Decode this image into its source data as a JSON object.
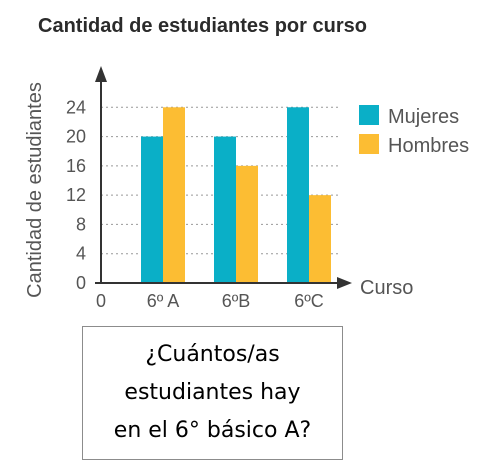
{
  "chart_data": {
    "type": "bar",
    "title": "Cantidad de estudiantes por curso",
    "xlabel": "Curso",
    "ylabel": "Cantidad de estudiantes",
    "categories": [
      "6º A",
      "6ºB",
      "6ºC"
    ],
    "series": [
      {
        "name": "Mujeres",
        "values": [
          20,
          20,
          24
        ],
        "color": "#0aafc7"
      },
      {
        "name": "Hombres",
        "values": [
          24,
          16,
          12
        ],
        "color": "#fcbd33"
      }
    ],
    "ylim": [
      0,
      28
    ],
    "y_ticks": [
      "0",
      "4",
      "8",
      "12",
      "16",
      "20",
      "24"
    ],
    "origin_label": "0",
    "grid": "horizontal dotted",
    "legend": "right"
  },
  "question": {
    "lines": [
      "¿Cuántos/as",
      "estudiantes hay",
      "en el 6° básico A?"
    ]
  }
}
